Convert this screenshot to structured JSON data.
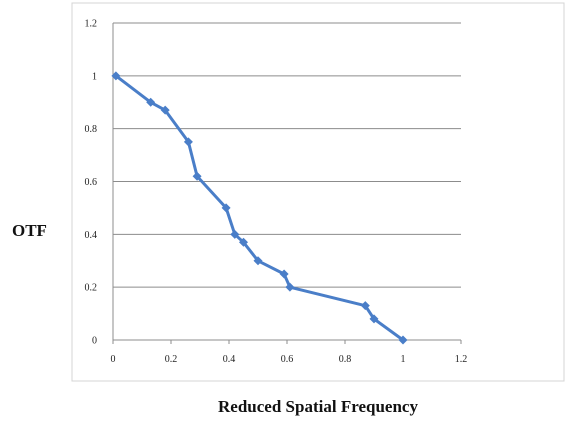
{
  "chart_data": {
    "type": "line",
    "title": "",
    "xlabel": "Reduced  Spatial Frequency",
    "ylabel": "OTF",
    "xlim": [
      0,
      1.2
    ],
    "ylim": [
      0,
      1.2
    ],
    "x_ticks": [
      0,
      0.2,
      0.4,
      0.6,
      0.8,
      1,
      1.2
    ],
    "y_ticks": [
      0,
      0.2,
      0.4,
      0.6,
      0.8,
      1,
      1.2
    ],
    "x_tick_labels": [
      "0",
      "0.2",
      "0.4",
      "0.6",
      "0.8",
      "1",
      "1.2"
    ],
    "y_tick_labels": [
      "0",
      "0.2",
      "0.4",
      "0.6",
      "0.8",
      "1",
      "1.2"
    ],
    "grid": "horizontal",
    "legend": "none",
    "series": [
      {
        "color": "#4a7ec8",
        "x": [
          0.01,
          0.13,
          0.18,
          0.26,
          0.29,
          0.39,
          0.42,
          0.45,
          0.5,
          0.59,
          0.61,
          0.87,
          0.9,
          1.0
        ],
        "y": [
          1.0,
          0.9,
          0.87,
          0.75,
          0.62,
          0.5,
          0.4,
          0.37,
          0.3,
          0.25,
          0.2,
          0.13,
          0.08,
          0.0
        ]
      }
    ]
  }
}
